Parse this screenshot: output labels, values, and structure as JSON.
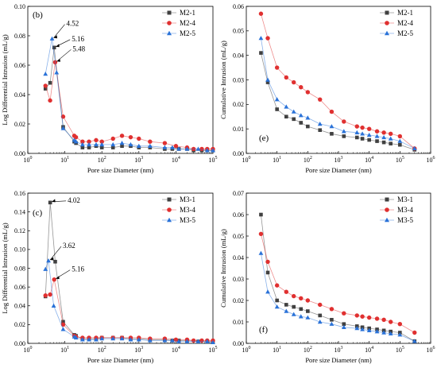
{
  "colors": {
    "series1": "#404040",
    "series2": "#e03030",
    "series3": "#2a72d8"
  },
  "chart_data": [
    {
      "id": "b",
      "type": "scatter",
      "panel_label": "(b)",
      "xscale": "log",
      "xlim": [
        1,
        100000
      ],
      "ylim": [
        0,
        0.1
      ],
      "xticks": [
        "10^0",
        "10^1",
        "10^2",
        "10^3",
        "10^4",
        "10^5"
      ],
      "yticks": [
        "0.00",
        "0.02",
        "0.04",
        "0.06",
        "0.08",
        "0.10"
      ],
      "xlabel": "Pore size Diameter (nm)",
      "ylabel": "Log Differential Intrusion (mL/g)",
      "legend_position": "top-right",
      "series": [
        {
          "name": "M2-1",
          "marker": "square",
          "x": [
            3,
            4,
            5.16,
            9,
            18,
            20,
            30,
            45,
            70,
            100,
            200,
            350,
            600,
            1000,
            2000,
            5000,
            8000,
            12000,
            20000,
            30000,
            50000,
            70000,
            100000
          ],
          "y": [
            0.044,
            0.048,
            0.072,
            0.018,
            0.008,
            0.007,
            0.004,
            0.004,
            0.005,
            0.004,
            0.004,
            0.005,
            0.005,
            0.004,
            0.004,
            0.003,
            0.003,
            0.003,
            0.003,
            0.002,
            0.002,
            0.002,
            0.002
          ]
        },
        {
          "name": "M2-4",
          "marker": "circle",
          "x": [
            3,
            4,
            5.48,
            9,
            18,
            20,
            30,
            45,
            70,
            100,
            200,
            350,
            600,
            1000,
            2000,
            5000,
            10000,
            20000,
            30000,
            50000,
            70000,
            100000
          ],
          "y": [
            0.046,
            0.036,
            0.062,
            0.025,
            0.012,
            0.011,
            0.008,
            0.008,
            0.009,
            0.008,
            0.01,
            0.012,
            0.011,
            0.01,
            0.008,
            0.007,
            0.005,
            0.004,
            0.003,
            0.003,
            0.003,
            0.003
          ]
        },
        {
          "name": "M2-5",
          "marker": "triangle",
          "x": [
            3,
            4.52,
            6,
            9,
            18,
            20,
            30,
            45,
            70,
            100,
            200,
            350,
            600,
            1000,
            2000,
            5000,
            8000,
            12000,
            20000,
            40000,
            70000,
            100000
          ],
          "y": [
            0.054,
            0.078,
            0.055,
            0.017,
            0.009,
            0.008,
            0.006,
            0.006,
            0.006,
            0.006,
            0.006,
            0.007,
            0.006,
            0.005,
            0.005,
            0.004,
            0.004,
            0.003,
            0.003,
            0.003,
            0.002,
            0.002
          ]
        }
      ],
      "annotations": [
        {
          "text": "4.52",
          "x": 4.52,
          "y": 0.078
        },
        {
          "text": "5.16",
          "x": 5.16,
          "y": 0.072
        },
        {
          "text": "5.48",
          "x": 5.48,
          "y": 0.062
        }
      ]
    },
    {
      "id": "e",
      "type": "scatter",
      "panel_label": "(e)",
      "xscale": "log",
      "xlim": [
        1,
        1000000
      ],
      "ylim": [
        0,
        0.06
      ],
      "xticks": [
        "10^0",
        "10^1",
        "10^2",
        "10^3",
        "10^4",
        "10^5",
        "10^6"
      ],
      "yticks": [
        "0.00",
        "0.01",
        "0.02",
        "0.03",
        "0.04",
        "0.05",
        "0.06"
      ],
      "xlabel": "Pore size Diameter (nm)",
      "ylabel": "Cumulative Intrusion (mL/g)",
      "legend_position": "top-right",
      "series": [
        {
          "name": "M2-1",
          "marker": "square",
          "x": [
            3,
            5,
            10,
            20,
            35,
            60,
            100,
            250,
            600,
            1500,
            4000,
            6000,
            10000,
            18000,
            30000,
            50000,
            100000,
            300000
          ],
          "y": [
            0.041,
            0.029,
            0.018,
            0.015,
            0.014,
            0.0125,
            0.011,
            0.0095,
            0.008,
            0.007,
            0.0065,
            0.006,
            0.0055,
            0.005,
            0.0045,
            0.004,
            0.0035,
            0.0015
          ]
        },
        {
          "name": "M2-4",
          "marker": "circle",
          "x": [
            3,
            5,
            10,
            20,
            35,
            60,
            100,
            250,
            600,
            1500,
            4000,
            6000,
            10000,
            18000,
            30000,
            50000,
            100000,
            300000
          ],
          "y": [
            0.057,
            0.047,
            0.035,
            0.031,
            0.029,
            0.027,
            0.025,
            0.022,
            0.017,
            0.013,
            0.011,
            0.0105,
            0.01,
            0.009,
            0.0085,
            0.008,
            0.007,
            0.002
          ]
        },
        {
          "name": "M2-5",
          "marker": "triangle",
          "x": [
            3,
            5,
            10,
            20,
            35,
            60,
            100,
            250,
            600,
            1500,
            4000,
            6000,
            10000,
            18000,
            30000,
            50000,
            100000,
            300000
          ],
          "y": [
            0.047,
            0.03,
            0.022,
            0.019,
            0.017,
            0.0155,
            0.0145,
            0.012,
            0.011,
            0.009,
            0.0085,
            0.008,
            0.0075,
            0.007,
            0.0065,
            0.006,
            0.005,
            0.002
          ]
        }
      ]
    },
    {
      "id": "c",
      "type": "scatter",
      "panel_label": "(c)",
      "xscale": "log",
      "xlim": [
        1,
        100000
      ],
      "ylim": [
        0,
        0.16
      ],
      "xticks": [
        "10^0",
        "10^1",
        "10^2",
        "10^3",
        "10^4",
        "10^5"
      ],
      "yticks": [
        "0.00",
        "0.02",
        "0.04",
        "0.06",
        "0.08",
        "0.10",
        "0.12",
        "0.14",
        "0.16"
      ],
      "xlabel": "Pore size Diameter (nm)",
      "ylabel": "Log Differential Intrusion (mL/g)",
      "legend_position": "top-right",
      "series": [
        {
          "name": "M3-1",
          "marker": "square",
          "x": [
            3,
            4.02,
            5.5,
            9,
            18,
            20,
            30,
            45,
            70,
            100,
            200,
            350,
            600,
            1000,
            2000,
            5000,
            8000,
            12000,
            20000,
            40000,
            70000,
            100000
          ],
          "y": [
            0.05,
            0.15,
            0.087,
            0.023,
            0.009,
            0.008,
            0.005,
            0.005,
            0.005,
            0.006,
            0.006,
            0.006,
            0.005,
            0.005,
            0.004,
            0.004,
            0.003,
            0.003,
            0.003,
            0.002,
            0.002,
            0.002
          ]
        },
        {
          "name": "M3-4",
          "marker": "circle",
          "x": [
            3,
            4,
            5.16,
            9,
            18,
            20,
            30,
            45,
            70,
            100,
            200,
            350,
            600,
            1000,
            2000,
            5000,
            10000,
            20000,
            30000,
            50000,
            70000,
            100000
          ],
          "y": [
            0.051,
            0.052,
            0.068,
            0.02,
            0.008,
            0.007,
            0.006,
            0.006,
            0.006,
            0.006,
            0.006,
            0.006,
            0.006,
            0.006,
            0.005,
            0.005,
            0.004,
            0.004,
            0.003,
            0.003,
            0.003,
            0.003
          ]
        },
        {
          "name": "M3-5",
          "marker": "triangle",
          "x": [
            3,
            3.62,
            5,
            9,
            18,
            20,
            30,
            45,
            70,
            100,
            200,
            350,
            600,
            1000,
            2000,
            5000,
            8000,
            12000,
            20000,
            40000,
            70000,
            100000
          ],
          "y": [
            0.079,
            0.088,
            0.04,
            0.015,
            0.007,
            0.006,
            0.004,
            0.004,
            0.004,
            0.005,
            0.005,
            0.005,
            0.004,
            0.004,
            0.003,
            0.003,
            0.003,
            0.002,
            0.002,
            0.002,
            0.002,
            0.001
          ]
        }
      ],
      "annotations": [
        {
          "text": "4.02",
          "x": 4.02,
          "y": 0.15
        },
        {
          "text": "3.62",
          "x": 3.62,
          "y": 0.088
        },
        {
          "text": "5.16",
          "x": 5.16,
          "y": 0.068
        }
      ]
    },
    {
      "id": "f",
      "type": "scatter",
      "panel_label": "(f)",
      "xscale": "log",
      "xlim": [
        1,
        1000000
      ],
      "ylim": [
        0,
        0.07
      ],
      "xticks": [
        "10^0",
        "10^1",
        "10^2",
        "10^3",
        "10^4",
        "10^5",
        "10^6"
      ],
      "yticks": [
        "0.00",
        "0.01",
        "0.02",
        "0.03",
        "0.04",
        "0.05",
        "0.06",
        "0.07"
      ],
      "xlabel": "Pore size Diameter (nm)",
      "ylabel": "Cumulative Intrusion (mL/g)",
      "legend_position": "top-right",
      "series": [
        {
          "name": "M3-1",
          "marker": "square",
          "x": [
            3,
            5,
            10,
            20,
            35,
            60,
            100,
            250,
            600,
            1500,
            4000,
            6000,
            10000,
            18000,
            30000,
            50000,
            100000,
            300000
          ],
          "y": [
            0.06,
            0.033,
            0.02,
            0.018,
            0.017,
            0.016,
            0.015,
            0.013,
            0.011,
            0.009,
            0.008,
            0.0075,
            0.007,
            0.0065,
            0.006,
            0.0055,
            0.005,
            0.001
          ]
        },
        {
          "name": "M3-4",
          "marker": "circle",
          "x": [
            3,
            5,
            10,
            20,
            35,
            60,
            100,
            250,
            600,
            1500,
            4000,
            6000,
            10000,
            18000,
            30000,
            50000,
            100000,
            300000
          ],
          "y": [
            0.051,
            0.038,
            0.027,
            0.024,
            0.022,
            0.021,
            0.02,
            0.018,
            0.016,
            0.014,
            0.013,
            0.0125,
            0.012,
            0.0115,
            0.011,
            0.01,
            0.009,
            0.005
          ]
        },
        {
          "name": "M3-5",
          "marker": "triangle",
          "x": [
            3,
            5,
            10,
            20,
            35,
            60,
            100,
            250,
            600,
            1500,
            4000,
            6000,
            10000,
            18000,
            30000,
            50000,
            100000,
            300000
          ],
          "y": [
            0.042,
            0.024,
            0.017,
            0.015,
            0.0135,
            0.0125,
            0.012,
            0.01,
            0.009,
            0.0075,
            0.007,
            0.0065,
            0.006,
            0.0055,
            0.005,
            0.0045,
            0.004,
            0.001
          ]
        }
      ]
    }
  ]
}
